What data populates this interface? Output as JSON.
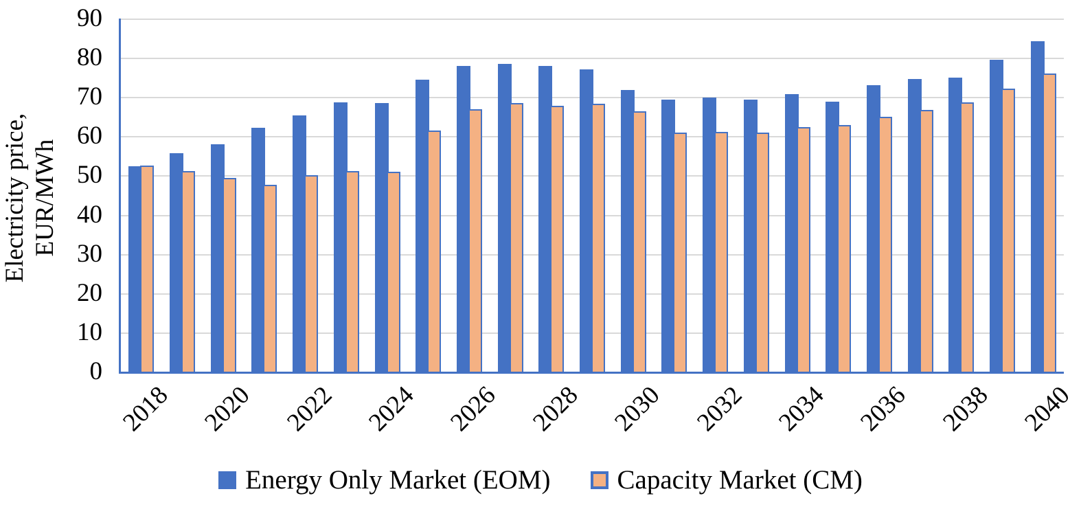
{
  "chart_data": {
    "type": "bar",
    "title": "",
    "xlabel": "",
    "ylabel": "Electricity price,\nEUR/MWh",
    "ylim": [
      0,
      90
    ],
    "yticks": [
      0,
      10,
      20,
      30,
      40,
      50,
      60,
      70,
      80,
      90
    ],
    "grid": true,
    "gridline_color": "#D9D9D9",
    "axis_line_color": "#4472C4",
    "legend_position": "bottom",
    "categories": [
      2018,
      2019,
      2020,
      2021,
      2022,
      2023,
      2024,
      2025,
      2026,
      2027,
      2028,
      2029,
      2030,
      2031,
      2032,
      2033,
      2034,
      2035,
      2036,
      2037,
      2038,
      2039,
      2040
    ],
    "x_tick_labels": [
      "2018",
      "2020",
      "2022",
      "2024",
      "2026",
      "2028",
      "2030",
      "2032",
      "2034",
      "2036",
      "2038",
      "2040"
    ],
    "series": [
      {
        "name": "Energy Only Market (EOM)",
        "color": "#4472C4",
        "values": [
          52.3,
          55.6,
          57.9,
          62.2,
          65.3,
          68.6,
          68.5,
          74.4,
          77.9,
          78.5,
          77.9,
          77.0,
          71.8,
          69.4,
          69.8,
          69.4,
          70.8,
          68.9,
          73.1,
          74.6,
          74.9,
          79.5,
          84.2
        ]
      },
      {
        "name": "Capacity Market (CM)",
        "color": "#F4B183",
        "border_color": "#4472C4",
        "values": [
          52.5,
          51.1,
          49.3,
          47.6,
          50.0,
          51.2,
          50.9,
          61.4,
          66.9,
          68.4,
          67.8,
          68.3,
          66.4,
          60.9,
          61.1,
          60.9,
          62.4,
          62.9,
          64.9,
          66.7,
          68.6,
          72.2,
          76.0
        ]
      }
    ]
  }
}
